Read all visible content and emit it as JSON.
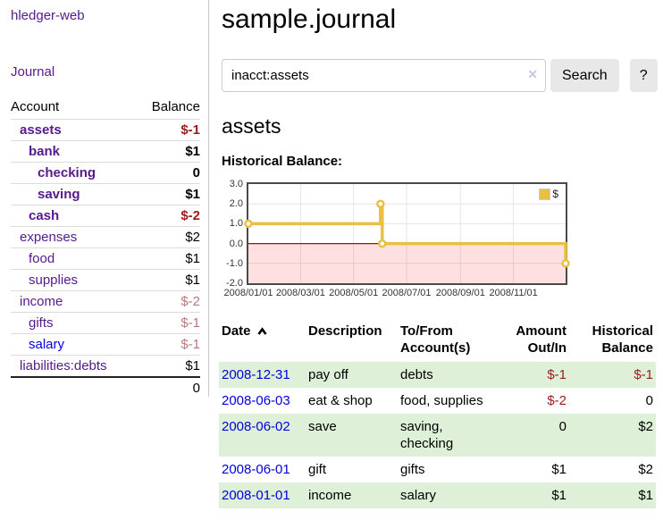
{
  "app": {
    "title": "hledger-web",
    "nav_journal": "Journal"
  },
  "colors": {
    "purple_link": "#551a8b",
    "blue_link": "#0000dd",
    "negative_strong": "#9e1b1b",
    "negative_soft": "#b87a7a",
    "row_highlight_green": "#dff0d8",
    "chart_border": "#4a4a4a"
  },
  "sidebar": {
    "col_account": "Account",
    "col_balance": "Balance",
    "accounts": [
      {
        "name": "assets",
        "balance": "$-1",
        "level": 1,
        "bold": true,
        "tone": "neg",
        "link": "purple"
      },
      {
        "name": "bank",
        "balance": "$1",
        "level": 2,
        "bold": true,
        "tone": "",
        "link": "purple"
      },
      {
        "name": "checking",
        "balance": "0",
        "level": 3,
        "bold": true,
        "tone": "",
        "link": "purple"
      },
      {
        "name": "saving",
        "balance": "$1",
        "level": 3,
        "bold": true,
        "tone": "",
        "link": "purple"
      },
      {
        "name": "cash",
        "balance": "$-2",
        "level": 2,
        "bold": true,
        "tone": "neg",
        "link": "purple"
      },
      {
        "name": "expenses",
        "balance": "$2",
        "level": 1,
        "bold": false,
        "tone": "",
        "link": "purple"
      },
      {
        "name": "food",
        "balance": "$1",
        "level": 2,
        "bold": false,
        "tone": "",
        "link": "purple"
      },
      {
        "name": "supplies",
        "balance": "$1",
        "level": 2,
        "bold": false,
        "tone": "",
        "link": "purple"
      },
      {
        "name": "income",
        "balance": "$-2",
        "level": 1,
        "bold": false,
        "tone": "soft",
        "link": "purple"
      },
      {
        "name": "gifts",
        "balance": "$-1",
        "level": 2,
        "bold": false,
        "tone": "soft",
        "link": "purple"
      },
      {
        "name": "salary",
        "balance": "$-1",
        "level": 2,
        "bold": false,
        "tone": "soft",
        "link": "blue"
      },
      {
        "name": "liabilities:debts",
        "balance": "$1",
        "level": 1,
        "bold": false,
        "tone": "",
        "link": "purple"
      }
    ],
    "total": "0"
  },
  "header": {
    "title": "sample.journal"
  },
  "search": {
    "value": "inacct:assets",
    "clear_icon": "✕",
    "button": "Search",
    "help": "?"
  },
  "account_page": {
    "title": "assets",
    "chart_label": "Historical Balance:"
  },
  "chart_data": {
    "type": "line",
    "title": "Historical Balance",
    "series": [
      {
        "name": "$",
        "color": "#e9c044",
        "step": true,
        "points": [
          [
            "2008-01-01",
            1
          ],
          [
            "2008-06-01",
            2
          ],
          [
            "2008-06-03",
            0
          ],
          [
            "2008-12-31",
            -1
          ]
        ]
      }
    ],
    "x_ticks": [
      "2008/01/01",
      "2008/03/01",
      "2008/05/01",
      "2008/07/01",
      "2008/09/01",
      "2008/11/01"
    ],
    "y_ticks": [
      3.0,
      2.0,
      1.0,
      0.0,
      -1.0,
      -2.0
    ],
    "xlim": [
      "2008-01-01",
      "2008-12-31"
    ],
    "ylim": [
      -2,
      3
    ],
    "grid": true,
    "grid_color": "#e4e4e4",
    "legend_position": "top-right",
    "negative_region_color": "rgba(255,0,0,0.12)",
    "zero_line_color": "#8b1a1a"
  },
  "register": {
    "columns": [
      "Date",
      "Description",
      "To/From Account(s)",
      "Amount Out/In",
      "Historical Balance"
    ],
    "sort": {
      "column": "Date",
      "direction": "ascending"
    },
    "rows": [
      {
        "date": "2008-12-31",
        "description": "pay off",
        "accounts": "debts",
        "amount": "$-1",
        "balance": "$-1",
        "highlight": true
      },
      {
        "date": "2008-06-03",
        "description": "eat & shop",
        "accounts": "food, supplies",
        "amount": "$-2",
        "balance": "0",
        "highlight": false
      },
      {
        "date": "2008-06-02",
        "description": "save",
        "accounts": "saving, checking",
        "amount": "0",
        "balance": "$2",
        "highlight": true
      },
      {
        "date": "2008-06-01",
        "description": "gift",
        "accounts": "gifts",
        "amount": "$1",
        "balance": "$2",
        "highlight": false
      },
      {
        "date": "2008-01-01",
        "description": "income",
        "accounts": "salary",
        "amount": "$1",
        "balance": "$1",
        "highlight": true
      }
    ]
  }
}
